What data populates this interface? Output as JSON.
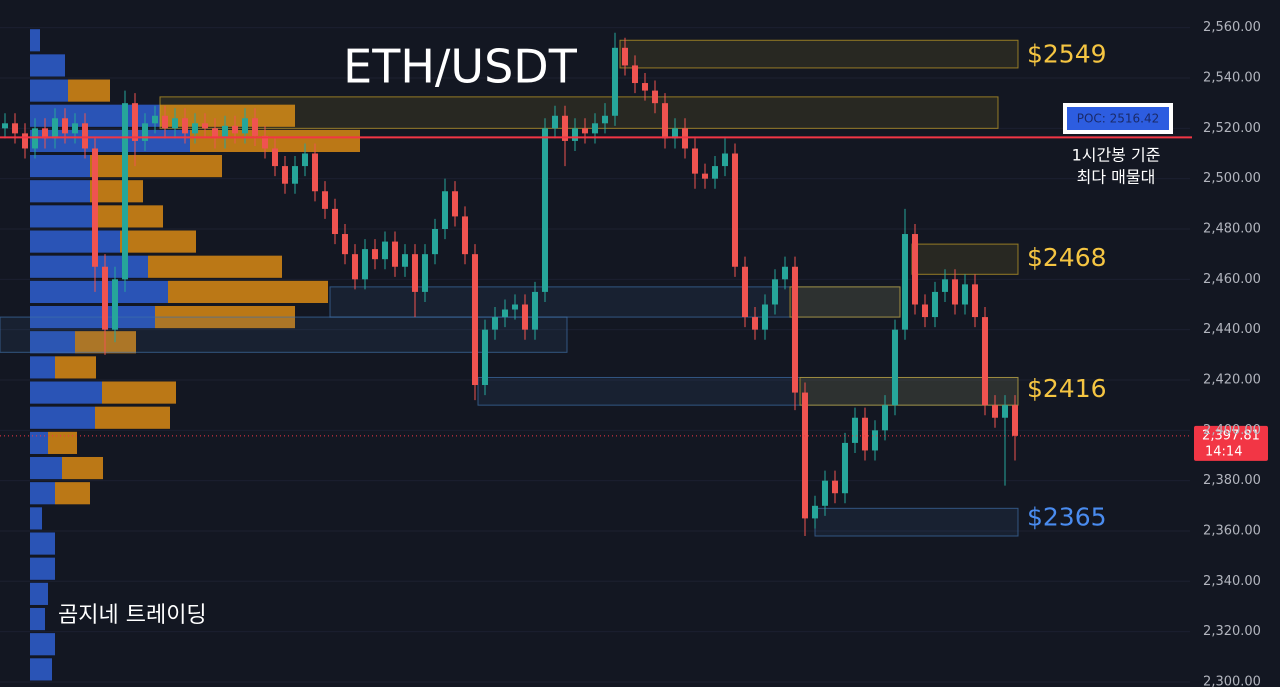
{
  "chart_data": {
    "type": "candlestick",
    "title": "ETH/USDT",
    "ylim": [
      2298,
      2571
    ],
    "yticks": [
      {
        "value": 2560,
        "label": "2,560.00"
      },
      {
        "value": 2540,
        "label": "2,540.00"
      },
      {
        "value": 2520,
        "label": "2,520.00"
      },
      {
        "value": 2500,
        "label": "2,500.00"
      },
      {
        "value": 2480,
        "label": "2,480.00"
      },
      {
        "value": 2460,
        "label": "2,460.00"
      },
      {
        "value": 2440,
        "label": "2,440.00"
      },
      {
        "value": 2420,
        "label": "2,420.00"
      },
      {
        "value": 2400,
        "label": "2,400.00"
      },
      {
        "value": 2380,
        "label": "2,380.00"
      },
      {
        "value": 2360,
        "label": "2,360.00"
      },
      {
        "value": 2340,
        "label": "2,340.00"
      },
      {
        "value": 2320,
        "label": "2,320.00"
      },
      {
        "value": 2300,
        "label": "2,300.00"
      }
    ],
    "up_color": "#26a69a",
    "down_color": "#ef5350",
    "open": [
      2520,
      2522,
      2518,
      2512,
      2520,
      2516,
      2524,
      2518,
      2522,
      2512,
      2465,
      2440,
      2460,
      2530,
      2515,
      2522,
      2525,
      2520,
      2524,
      2518,
      2522,
      2520,
      2516,
      2521,
      2518,
      2524,
      2517,
      2512,
      2505,
      2498,
      2505,
      2510,
      2495,
      2488,
      2478,
      2470,
      2460,
      2472,
      2468,
      2475,
      2465,
      2470,
      2455,
      2470,
      2480,
      2495,
      2485,
      2470,
      2418,
      2440,
      2445,
      2448,
      2450,
      2440,
      2455,
      2520,
      2525,
      2515,
      2520,
      2518,
      2522,
      2525,
      2552,
      2545,
      2538,
      2535,
      2530,
      2516,
      2520,
      2512,
      2502,
      2500,
      2505,
      2510,
      2465,
      2445,
      2440,
      2450,
      2460,
      2465,
      2415,
      2365,
      2370,
      2380,
      2375,
      2395,
      2405,
      2392,
      2400,
      2410,
      2440,
      2478,
      2450,
      2445,
      2455,
      2460,
      2450,
      2458,
      2445,
      2410,
      2405,
      2410
    ],
    "high": [
      2526,
      2526,
      2522,
      2524,
      2524,
      2528,
      2528,
      2526,
      2526,
      2516,
      2470,
      2465,
      2535,
      2534,
      2526,
      2529,
      2529,
      2528,
      2528,
      2526,
      2526,
      2524,
      2525,
      2525,
      2528,
      2528,
      2521,
      2516,
      2509,
      2509,
      2514,
      2514,
      2499,
      2492,
      2482,
      2474,
      2476,
      2476,
      2479,
      2479,
      2474,
      2474,
      2474,
      2484,
      2500,
      2499,
      2489,
      2474,
      2444,
      2449,
      2452,
      2454,
      2454,
      2459,
      2524,
      2529,
      2529,
      2524,
      2524,
      2526,
      2530,
      2558,
      2556,
      2549,
      2542,
      2539,
      2534,
      2524,
      2524,
      2516,
      2506,
      2509,
      2516,
      2514,
      2469,
      2449,
      2454,
      2464,
      2469,
      2469,
      2419,
      2374,
      2384,
      2384,
      2399,
      2409,
      2409,
      2404,
      2414,
      2444,
      2488,
      2482,
      2454,
      2459,
      2464,
      2464,
      2462,
      2462,
      2449,
      2414,
      2414,
      2414
    ],
    "low": [
      2516,
      2514,
      2508,
      2508,
      2512,
      2512,
      2514,
      2514,
      2508,
      2455,
      2430,
      2435,
      2455,
      2505,
      2511,
      2518,
      2516,
      2516,
      2514,
      2514,
      2516,
      2512,
      2512,
      2514,
      2514,
      2513,
      2508,
      2501,
      2494,
      2494,
      2501,
      2491,
      2484,
      2474,
      2466,
      2456,
      2456,
      2464,
      2464,
      2461,
      2461,
      2445,
      2451,
      2466,
      2476,
      2481,
      2466,
      2412,
      2414,
      2436,
      2441,
      2444,
      2436,
      2436,
      2451,
      2516,
      2505,
      2511,
      2514,
      2514,
      2518,
      2521,
      2541,
      2534,
      2531,
      2526,
      2512,
      2512,
      2508,
      2496,
      2496,
      2496,
      2501,
      2461,
      2441,
      2436,
      2436,
      2446,
      2456,
      2408,
      2358,
      2361,
      2366,
      2371,
      2371,
      2391,
      2388,
      2388,
      2396,
      2406,
      2436,
      2446,
      2441,
      2441,
      2451,
      2446,
      2446,
      2441,
      2406,
      2401,
      2378,
      2388
    ],
    "close": [
      2522,
      2518,
      2512,
      2520,
      2516,
      2524,
      2518,
      2522,
      2512,
      2465,
      2440,
      2460,
      2530,
      2515,
      2522,
      2525,
      2520,
      2524,
      2518,
      2522,
      2520,
      2516,
      2521,
      2518,
      2524,
      2517,
      2512,
      2505,
      2498,
      2505,
      2510,
      2495,
      2488,
      2478,
      2470,
      2460,
      2472,
      2468,
      2475,
      2465,
      2470,
      2455,
      2470,
      2480,
      2495,
      2485,
      2470,
      2418,
      2440,
      2445,
      2448,
      2450,
      2440,
      2455,
      2520,
      2525,
      2515,
      2520,
      2518,
      2522,
      2525,
      2552,
      2545,
      2538,
      2535,
      2530,
      2516,
      2520,
      2512,
      2502,
      2500,
      2505,
      2510,
      2465,
      2445,
      2440,
      2450,
      2460,
      2465,
      2415,
      2365,
      2370,
      2380,
      2375,
      2395,
      2405,
      2392,
      2400,
      2410,
      2440,
      2478,
      2450,
      2445,
      2455,
      2460,
      2450,
      2458,
      2445,
      2410,
      2405,
      2410,
      2397.81
    ],
    "volume_profile": {
      "buy_color": "#2f5fd0",
      "sell_color": "#d98a14",
      "price": [
        2555,
        2545,
        2535,
        2525,
        2515,
        2505,
        2495,
        2485,
        2475,
        2465,
        2455,
        2445,
        2435,
        2425,
        2415,
        2405,
        2395,
        2385,
        2375,
        2365,
        2355,
        2345,
        2335,
        2325,
        2315,
        2305
      ],
      "buy": [
        10,
        35,
        38,
        130,
        160,
        60,
        60,
        65,
        90,
        118,
        138,
        125,
        45,
        25,
        72,
        65,
        18,
        32,
        25,
        12,
        25,
        25,
        18,
        15,
        25,
        22
      ],
      "sell": [
        0,
        0,
        42,
        135,
        170,
        132,
        53,
        68,
        76,
        134,
        160,
        140,
        61,
        41,
        74,
        75,
        29,
        41,
        35,
        0,
        0,
        0,
        0,
        0,
        0,
        0
      ]
    },
    "zones": [
      {
        "low": 2544,
        "high": 2555,
        "color": "#c9a227"
      },
      {
        "low": 2520,
        "high": 2532.5,
        "color": "#c9a227"
      },
      {
        "low": 2462,
        "high": 2474,
        "color": "#c9a227"
      },
      {
        "low": 2445,
        "high": 2457,
        "color": "#3f6fa8"
      },
      {
        "low": 2445,
        "high": 2457,
        "color": "#c9a227"
      },
      {
        "low": 2431,
        "high": 2445,
        "color": "#3f6fa8"
      },
      {
        "low": 2410,
        "high": 2421,
        "color": "#3f6fa8"
      },
      {
        "low": 2410,
        "high": 2421,
        "color": "#c9a227"
      },
      {
        "low": 2358,
        "high": 2369,
        "color": "#3f6fa8"
      }
    ],
    "price_labels": [
      {
        "value": 2549,
        "label": "$2549",
        "color": "#f5c542"
      },
      {
        "value": 2468,
        "label": "$2468",
        "color": "#f5c542"
      },
      {
        "value": 2416,
        "label": "$2416",
        "color": "#f5c542"
      },
      {
        "value": 2365,
        "label": "$2365",
        "color": "#4a8cf0"
      }
    ],
    "poc": {
      "value": 2516.42,
      "label": "POC: 2516.42",
      "color": "#f23645",
      "note": [
        "1시간봉 기준",
        "최다 매물대"
      ]
    },
    "last_price": {
      "value": 2397.81,
      "label": "2,397.81",
      "time": "14:14",
      "color": "#f23645"
    },
    "watermark": "곰지네 트레이딩"
  }
}
